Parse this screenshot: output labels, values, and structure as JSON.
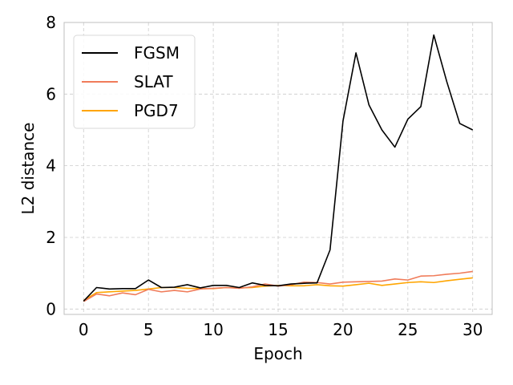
{
  "chart_data": {
    "type": "line",
    "title": "",
    "xlabel": "Epoch",
    "ylabel": "L2 distance",
    "xlim": [
      -1.5,
      31.5
    ],
    "ylim": [
      -0.15,
      8
    ],
    "xticks": [
      0,
      5,
      10,
      15,
      20,
      25,
      30
    ],
    "yticks": [
      0,
      2,
      4,
      6,
      8
    ],
    "grid": true,
    "legend_position": "top-left",
    "x": [
      0,
      1,
      2,
      3,
      4,
      5,
      6,
      7,
      8,
      9,
      10,
      11,
      12,
      13,
      14,
      15,
      16,
      17,
      18,
      19,
      20,
      21,
      22,
      23,
      24,
      25,
      26,
      27,
      28,
      29,
      30
    ],
    "series": [
      {
        "name": "FGSM",
        "color": "#000000",
        "values": [
          0.22,
          0.6,
          0.56,
          0.57,
          0.57,
          0.81,
          0.6,
          0.61,
          0.68,
          0.59,
          0.66,
          0.66,
          0.6,
          0.73,
          0.66,
          0.65,
          0.7,
          0.72,
          0.73,
          1.65,
          5.25,
          7.15,
          5.7,
          5.0,
          4.52,
          5.3,
          5.65,
          7.65,
          6.35,
          5.18,
          5.0
        ]
      },
      {
        "name": "SLAT",
        "color": "#f07c5a",
        "values": [
          0.21,
          0.42,
          0.37,
          0.45,
          0.4,
          0.55,
          0.48,
          0.52,
          0.48,
          0.56,
          0.58,
          0.6,
          0.58,
          0.62,
          0.7,
          0.64,
          0.68,
          0.75,
          0.74,
          0.7,
          0.75,
          0.76,
          0.77,
          0.78,
          0.84,
          0.81,
          0.92,
          0.93,
          0.97,
          1.0,
          1.05
        ]
      },
      {
        "name": "PGD7",
        "color": "#ffa500",
        "values": [
          0.24,
          0.46,
          0.48,
          0.5,
          0.52,
          0.56,
          0.6,
          0.6,
          0.58,
          0.57,
          0.57,
          0.6,
          0.59,
          0.6,
          0.64,
          0.66,
          0.65,
          0.65,
          0.68,
          0.65,
          0.64,
          0.68,
          0.72,
          0.66,
          0.7,
          0.74,
          0.76,
          0.74,
          0.79,
          0.83,
          0.87
        ]
      }
    ]
  }
}
